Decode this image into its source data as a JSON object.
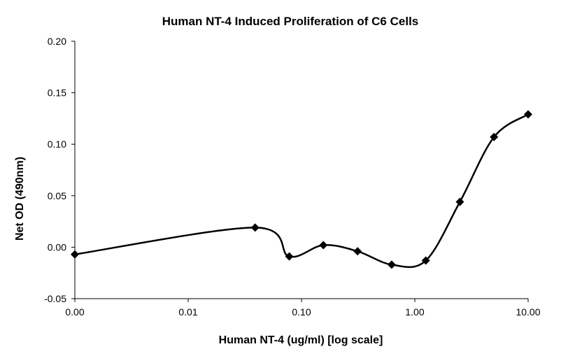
{
  "chart_data": {
    "type": "line",
    "title": "Human NT-4 Induced Proliferation of C6 Cells",
    "xlabel": "Human NT-4 (ug/ml) [log scale]",
    "ylabel": "Net OD (490nm)",
    "x_scale": "log",
    "x_ticks": [
      "0.00",
      "0.01",
      "0.10",
      "1.00",
      "10.00"
    ],
    "y_ticks": [
      "0.20",
      "0.15",
      "0.10",
      "0.05",
      "0.00",
      "-0.05"
    ],
    "xlim": [
      0.001,
      10
    ],
    "ylim": [
      -0.05,
      0.2
    ],
    "grid": false,
    "legend": "none",
    "marker": "diamond",
    "line_style": "smoothed",
    "color": "#000000",
    "series": [
      {
        "x": [
          0.001,
          0.039,
          0.078,
          0.156,
          0.3125,
          0.625,
          1.25,
          2.5,
          5,
          10
        ],
        "y": [
          -0.007,
          0.019,
          -0.009,
          0.002,
          -0.004,
          -0.017,
          -0.013,
          0.044,
          0.107,
          0.129
        ]
      }
    ]
  }
}
